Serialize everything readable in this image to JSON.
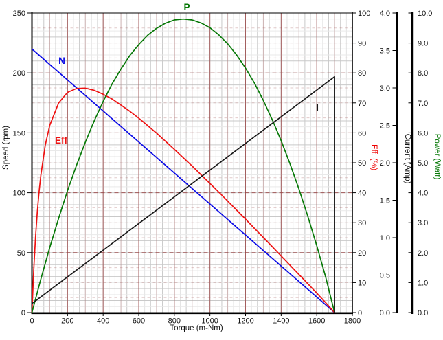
{
  "chart_data": {
    "type": "line",
    "title": "",
    "xlabel": "Torque (m-Nm)",
    "xlim": [
      0,
      1800
    ],
    "x_ticks": [
      "0",
      "200",
      "400",
      "600",
      "800",
      "1000",
      "1200",
      "1400",
      "1600",
      "1800"
    ],
    "grid": "on",
    "legend_position": "labels-on-curves",
    "axes": {
      "speed": {
        "label": "Speed (rpm)",
        "side": "left",
        "range": [
          0,
          250
        ],
        "ticks": [
          "0",
          "50",
          "100",
          "150",
          "200",
          "250"
        ],
        "color": "#000000"
      },
      "eff": {
        "label": "Eff. (%)",
        "side": "right",
        "range": [
          0,
          100
        ],
        "ticks": [
          "0",
          "10",
          "20",
          "30",
          "40",
          "50",
          "60",
          "70",
          "80",
          "90",
          "100"
        ],
        "color": "#ee0000"
      },
      "current": {
        "label": "Current (Amp)",
        "side": "right",
        "range": [
          0,
          4
        ],
        "ticks": [
          "0.0",
          "0.5",
          "1.0",
          "1.5",
          "2.0",
          "2.5",
          "3.0",
          "3.5",
          "4.0"
        ],
        "color": "#1a1a1a"
      },
      "power": {
        "label": "Power (Watt)",
        "side": "right",
        "range": [
          0,
          10
        ],
        "ticks": [
          "0.0",
          "1.0",
          "2.0",
          "3.0",
          "4.0",
          "5.0",
          "6.0",
          "7.0",
          "8.0",
          "9.0",
          "10.0"
        ],
        "color": "#067806"
      }
    },
    "series": [
      {
        "name": "N",
        "axis": "speed",
        "color": "#0a0ae6",
        "points": [
          [
            0,
            220
          ],
          [
            1700,
            0
          ]
        ]
      },
      {
        "name": "Eff",
        "axis": "eff",
        "color": "#ee1111",
        "points": [
          [
            0,
            0
          ],
          [
            10,
            14.2
          ],
          [
            20,
            25.1
          ],
          [
            30,
            33.6
          ],
          [
            40,
            40.4
          ],
          [
            50,
            45.9
          ],
          [
            75,
            55.9
          ],
          [
            100,
            62.5
          ],
          [
            150,
            70.0
          ],
          [
            200,
            73.5
          ],
          [
            250,
            74.8
          ],
          [
            300,
            74.9
          ],
          [
            350,
            74.2
          ],
          [
            400,
            72.9
          ],
          [
            450,
            71.3
          ],
          [
            500,
            69.3
          ],
          [
            550,
            67.2
          ],
          [
            600,
            64.9
          ],
          [
            650,
            62.4
          ],
          [
            700,
            59.9
          ],
          [
            750,
            57.2
          ],
          [
            800,
            54.5
          ],
          [
            850,
            51.7
          ],
          [
            900,
            48.9
          ],
          [
            950,
            46.0
          ],
          [
            1000,
            43.1
          ],
          [
            1050,
            40.2
          ],
          [
            1100,
            37.2
          ],
          [
            1150,
            34.2
          ],
          [
            1200,
            31.2
          ],
          [
            1250,
            28.1
          ],
          [
            1300,
            25.1
          ],
          [
            1350,
            22.0
          ],
          [
            1400,
            18.9
          ],
          [
            1450,
            15.8
          ],
          [
            1500,
            12.7
          ],
          [
            1550,
            9.6
          ],
          [
            1600,
            6.5
          ],
          [
            1650,
            3.3
          ],
          [
            1700,
            0
          ]
        ]
      },
      {
        "name": "P",
        "axis": "power",
        "color": "#067806",
        "points": [
          [
            0,
            0
          ],
          [
            50,
            1.12
          ],
          [
            100,
            2.17
          ],
          [
            150,
            3.15
          ],
          [
            200,
            4.07
          ],
          [
            250,
            4.91
          ],
          [
            300,
            5.69
          ],
          [
            350,
            6.4
          ],
          [
            400,
            7.05
          ],
          [
            450,
            7.63
          ],
          [
            500,
            8.13
          ],
          [
            550,
            8.58
          ],
          [
            600,
            8.95
          ],
          [
            650,
            9.26
          ],
          [
            700,
            9.49
          ],
          [
            750,
            9.66
          ],
          [
            800,
            9.77
          ],
          [
            850,
            9.8
          ],
          [
            900,
            9.77
          ],
          [
            950,
            9.67
          ],
          [
            1000,
            9.51
          ],
          [
            1050,
            9.27
          ],
          [
            1100,
            8.97
          ],
          [
            1150,
            8.6
          ],
          [
            1200,
            8.16
          ],
          [
            1250,
            7.66
          ],
          [
            1300,
            7.08
          ],
          [
            1350,
            6.44
          ],
          [
            1400,
            5.74
          ],
          [
            1450,
            4.96
          ],
          [
            1500,
            4.12
          ],
          [
            1550,
            3.21
          ],
          [
            1600,
            2.23
          ],
          [
            1650,
            1.19
          ],
          [
            1700,
            0
          ]
        ]
      },
      {
        "name": "I",
        "axis": "current",
        "color": "#1a1a1a",
        "points": [
          [
            0,
            0.12
          ],
          [
            1700,
            3.15
          ],
          [
            1700,
            0
          ]
        ]
      }
    ],
    "annotations": {
      "no_load_speed_rpm": 220,
      "stall_torque_mNm": 1700,
      "max_power_watt": 9.8,
      "max_power_at_torque": 850,
      "max_eff_pct": 75,
      "stall_current_amp": 3.15,
      "no_load_current_amp": 0.12
    },
    "colors": {
      "grid_minor": "#e3e3e3",
      "grid_normal": "#c9c9c9",
      "grid_major_red": "#9a4444",
      "background": "#ffffff"
    }
  }
}
